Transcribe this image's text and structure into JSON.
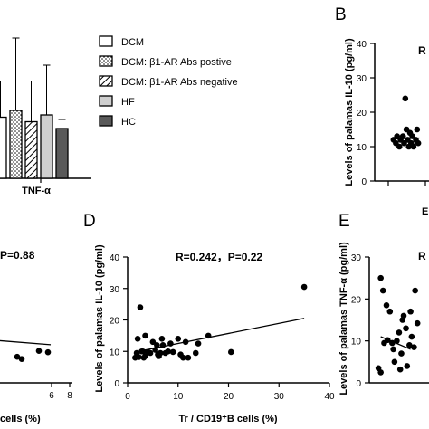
{
  "chart_data": [
    {
      "id": "A",
      "type": "bar",
      "xlabel": "TNF-α",
      "legend": [
        {
          "name": "DCM",
          "pattern": "white"
        },
        {
          "name": "DCM: β1-AR Abs postive",
          "pattern": "dots"
        },
        {
          "name": "DCM: β1-AR Abs negative",
          "pattern": "hatch"
        },
        {
          "name": "HF",
          "pattern": "light-gray"
        },
        {
          "name": "HC",
          "pattern": "dark-gray"
        }
      ],
      "values": [
        13.5,
        15,
        12.5,
        14,
        11
      ],
      "errors": [
        8,
        16,
        9,
        11,
        2
      ],
      "ylim": [
        0,
        30
      ]
    },
    {
      "id": "B",
      "type": "scatter",
      "letter": "B",
      "ylabel": "Levels of palamas IL-10 (pg/ml)",
      "yticks": [
        "0",
        "10",
        "20",
        "30",
        "40"
      ],
      "ylim": [
        0,
        40
      ],
      "xlim": [
        0,
        8
      ],
      "xlabel_fragment": "E",
      "points": [
        [
          1.6,
          12
        ],
        [
          1.8,
          11
        ],
        [
          1.9,
          13
        ],
        [
          2.1,
          10
        ],
        [
          2.2,
          12
        ],
        [
          2.4,
          13
        ],
        [
          2.5,
          11
        ],
        [
          2.6,
          24
        ],
        [
          2.7,
          15
        ],
        [
          2.8,
          12
        ],
        [
          2.9,
          10
        ],
        [
          3.0,
          14
        ],
        [
          3.1,
          11
        ],
        [
          3.2,
          13
        ],
        [
          3.3,
          10
        ],
        [
          3.5,
          12
        ],
        [
          3.6,
          15
        ],
        [
          3.7,
          11
        ]
      ],
      "fit": [
        [
          1.5,
          12.2
        ],
        [
          3.8,
          12.5
        ]
      ]
    },
    {
      "id": "C",
      "type": "scatter",
      "stat": "P=0.88",
      "xlabel_fragment": "cells (%)",
      "xticks": [
        "6",
        "8"
      ],
      "points": [
        [
          2.2,
          8
        ],
        [
          2.7,
          7.3
        ],
        [
          4.6,
          9.8
        ],
        [
          5.6,
          9.4
        ]
      ],
      "fit": [
        [
          0,
          13
        ],
        [
          5.9,
          11.7
        ]
      ]
    },
    {
      "id": "D",
      "type": "scatter",
      "letter": "D",
      "stat": "R=0.242，P=0.22",
      "ylabel": "Levels of palamas IL-10 (pg/ml)",
      "xlabel": "Tr / CD19⁺B cells (%)",
      "xticks": [
        "0",
        "10",
        "20",
        "30",
        "40"
      ],
      "yticks": [
        "0",
        "10",
        "20",
        "30",
        "40"
      ],
      "xlim": [
        0,
        40
      ],
      "ylim": [
        0,
        40
      ],
      "points": [
        [
          1.5,
          8
        ],
        [
          1.8,
          9.5
        ],
        [
          2,
          14
        ],
        [
          2.2,
          8.2
        ],
        [
          2.5,
          24
        ],
        [
          2.8,
          10
        ],
        [
          3,
          10
        ],
        [
          3.2,
          8
        ],
        [
          3.5,
          8.5
        ],
        [
          3.5,
          15
        ],
        [
          4,
          9.8
        ],
        [
          4.5,
          9.5
        ],
        [
          5,
          13
        ],
        [
          5.5,
          10.5
        ],
        [
          5.8,
          12
        ],
        [
          6,
          9
        ],
        [
          6.2,
          8.5
        ],
        [
          6.5,
          9.5
        ],
        [
          6.8,
          14
        ],
        [
          7,
          12
        ],
        [
          7.5,
          9.5
        ],
        [
          8,
          10
        ],
        [
          8.5,
          12.5
        ],
        [
          9,
          9.8
        ],
        [
          10,
          14
        ],
        [
          10.5,
          9
        ],
        [
          11,
          8
        ],
        [
          11.5,
          13
        ],
        [
          12,
          8
        ],
        [
          13.5,
          9.5
        ],
        [
          14,
          12.5
        ],
        [
          16,
          15
        ],
        [
          20.5,
          9.8
        ],
        [
          35,
          30.5
        ]
      ],
      "fit": [
        [
          1.5,
          9.8
        ],
        [
          35,
          20.5
        ]
      ]
    },
    {
      "id": "E",
      "type": "scatter",
      "letter": "E",
      "ylabel": "Levels of palamas TNF-α (pg/ml)",
      "yticks": [
        "0",
        "10",
        "20",
        "30"
      ],
      "ylim": [
        0,
        30
      ],
      "xlim": [
        0,
        12
      ],
      "points": [
        [
          1.0,
          25
        ],
        [
          1.2,
          22
        ],
        [
          1.5,
          18.5
        ],
        [
          1.8,
          17
        ],
        [
          2.0,
          9.5
        ],
        [
          2.2,
          5
        ],
        [
          2.6,
          12
        ],
        [
          2.8,
          7
        ],
        [
          3.0,
          16
        ],
        [
          3.2,
          13
        ],
        [
          3.5,
          9
        ],
        [
          3.7,
          11
        ],
        [
          3.9,
          8.5
        ],
        [
          0.8,
          3.5
        ],
        [
          1.0,
          2.5
        ],
        [
          1.3,
          9.5
        ],
        [
          1.6,
          10.2
        ],
        [
          2.4,
          10
        ],
        [
          2.9,
          15
        ],
        [
          3.3,
          4
        ],
        [
          4.0,
          22
        ],
        [
          4.2,
          14.2
        ],
        [
          3.6,
          17
        ],
        [
          2.7,
          3.2
        ],
        [
          2.1,
          8
        ]
      ],
      "fit": [
        [
          1.0,
          11
        ],
        [
          3.6,
          8
        ]
      ]
    }
  ]
}
